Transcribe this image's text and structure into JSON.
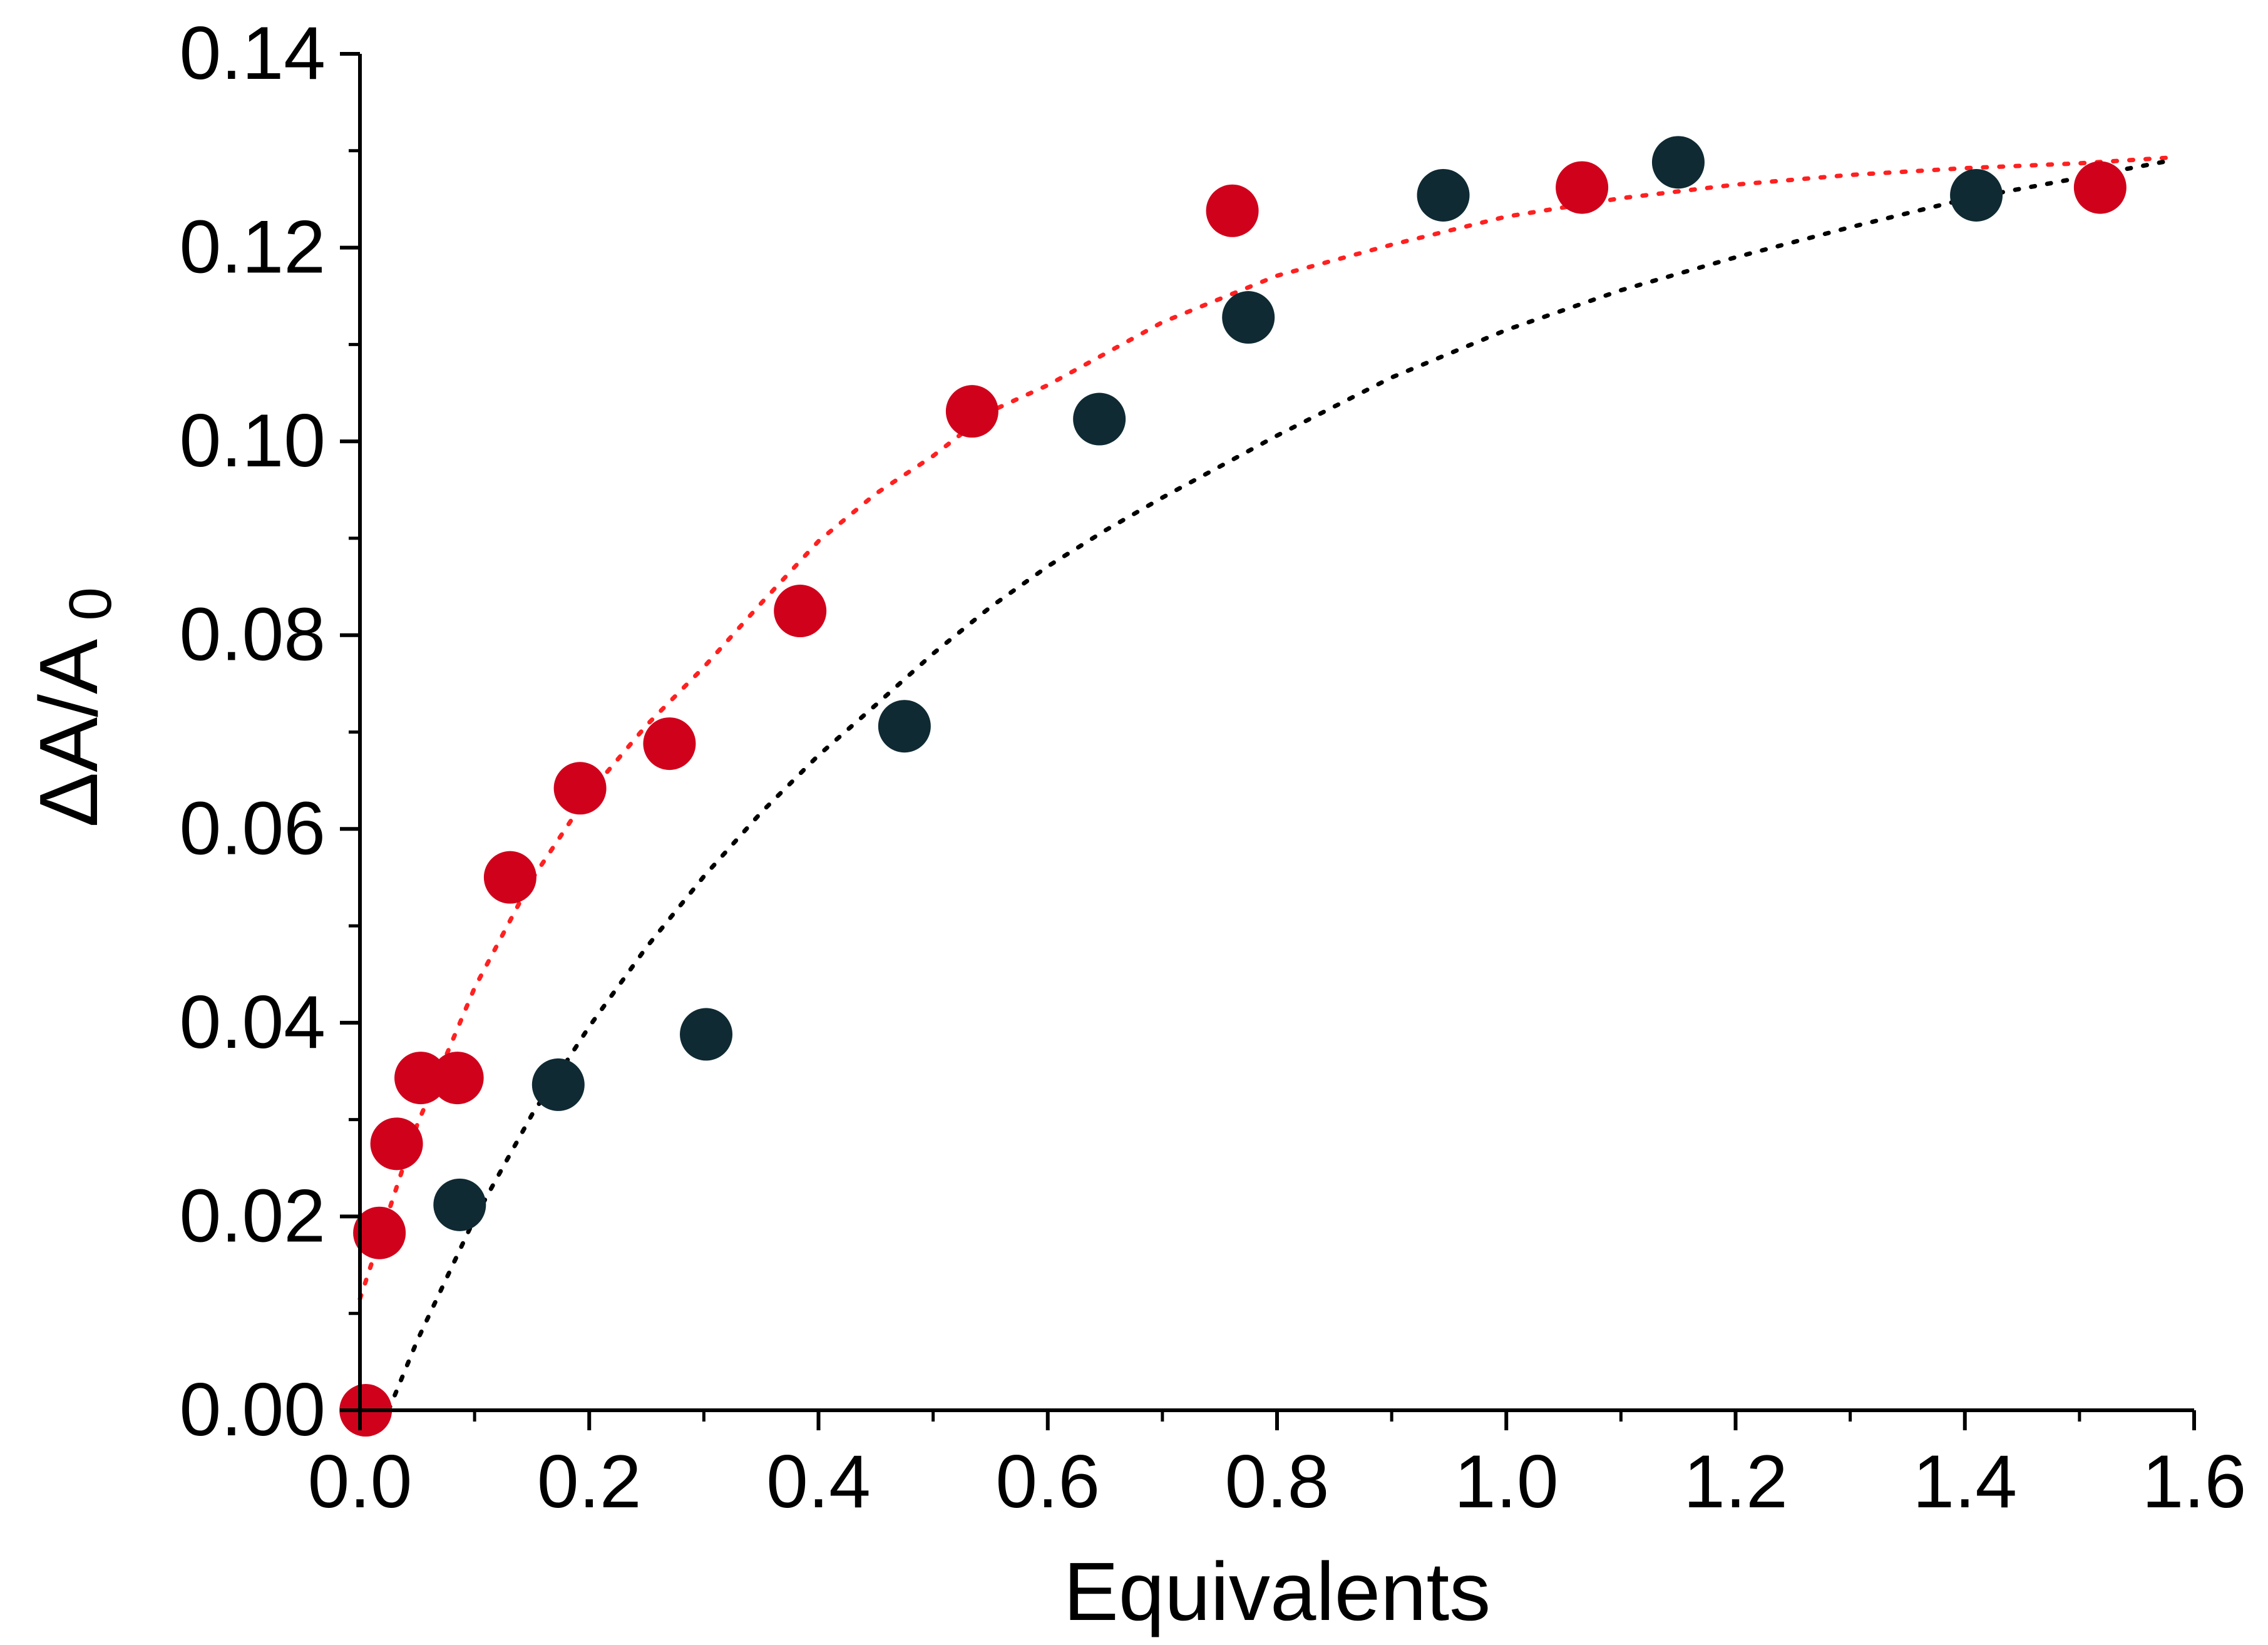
{
  "chart_data": {
    "type": "scatter",
    "title": "",
    "xlabel": "Equivalents",
    "ylabel": {
      "main": "ΔA/A",
      "subscript": "0"
    },
    "xlim": [
      0.0,
      1.6
    ],
    "ylim": [
      0.0,
      0.14
    ],
    "xticks": [
      "0.0",
      "0.2",
      "0.4",
      "0.6",
      "0.8",
      "1.0",
      "1.2",
      "1.4",
      "1.6"
    ],
    "yticks": [
      "0.00",
      "0.02",
      "0.04",
      "0.06",
      "0.08",
      "0.10",
      "0.12",
      "0.14"
    ],
    "grid": false,
    "legend": "none",
    "series": [
      {
        "name": "red-series",
        "color": "#d0021b",
        "points": [
          {
            "x": 0.005,
            "y": 0.0
          },
          {
            "x": 0.017,
            "y": 0.0183
          },
          {
            "x": 0.032,
            "y": 0.0275
          },
          {
            "x": 0.053,
            "y": 0.0343
          },
          {
            "x": 0.085,
            "y": 0.0343
          },
          {
            "x": 0.131,
            "y": 0.055
          },
          {
            "x": 0.192,
            "y": 0.0642
          },
          {
            "x": 0.27,
            "y": 0.0688
          },
          {
            "x": 0.384,
            "y": 0.0825
          },
          {
            "x": 0.534,
            "y": 0.1031
          },
          {
            "x": 0.761,
            "y": 0.1238
          },
          {
            "x": 1.066,
            "y": 0.1262
          },
          {
            "x": 1.518,
            "y": 0.1262
          }
        ],
        "fit": {
          "style": "dotted",
          "color": "#ff2020",
          "x": [
            0.0,
            0.05,
            0.1,
            0.15,
            0.2,
            0.25,
            0.3,
            0.35,
            0.4,
            0.45,
            0.5,
            0.55,
            0.6,
            0.7,
            0.8,
            0.9,
            1.0,
            1.1,
            1.2,
            1.3,
            1.4,
            1.5,
            1.58
          ],
          "y": [
            0.0115,
            0.0295,
            0.0436,
            0.0548,
            0.0637,
            0.0707,
            0.0767,
            0.0833,
            0.0897,
            0.0946,
            0.0985,
            0.1031,
            0.1058,
            0.1123,
            0.1171,
            0.1203,
            0.1232,
            0.1251,
            0.1265,
            0.1275,
            0.1282,
            0.1287,
            0.1293
          ]
        }
      },
      {
        "name": "dark-series",
        "color": "#0f2a33",
        "points": [
          {
            "x": 0.087,
            "y": 0.0212
          },
          {
            "x": 0.173,
            "y": 0.0336
          },
          {
            "x": 0.302,
            "y": 0.0388
          },
          {
            "x": 0.475,
            "y": 0.0706
          },
          {
            "x": 0.645,
            "y": 0.1023
          },
          {
            "x": 0.775,
            "y": 0.1128
          },
          {
            "x": 0.945,
            "y": 0.1254
          },
          {
            "x": 1.15,
            "y": 0.1288
          },
          {
            "x": 1.41,
            "y": 0.1254
          }
        ],
        "fit": {
          "style": "dotted",
          "color": "#000000",
          "x": [
            0.025,
            0.05,
            0.1,
            0.15,
            0.2,
            0.25,
            0.3,
            0.35,
            0.4,
            0.45,
            0.5,
            0.55,
            0.6,
            0.65,
            0.7,
            0.8,
            0.9,
            1.0,
            1.1,
            1.2,
            1.3,
            1.4,
            1.5,
            1.58
          ],
          "y": [
            0.0,
            0.0072,
            0.0198,
            0.0305,
            0.0396,
            0.0478,
            0.0551,
            0.0617,
            0.0676,
            0.0728,
            0.0781,
            0.0829,
            0.0871,
            0.0908,
            0.0942,
            0.1006,
            0.1066,
            0.1115,
            0.1156,
            0.119,
            0.1221,
            0.125,
            0.1272,
            0.129
          ]
        }
      }
    ]
  }
}
